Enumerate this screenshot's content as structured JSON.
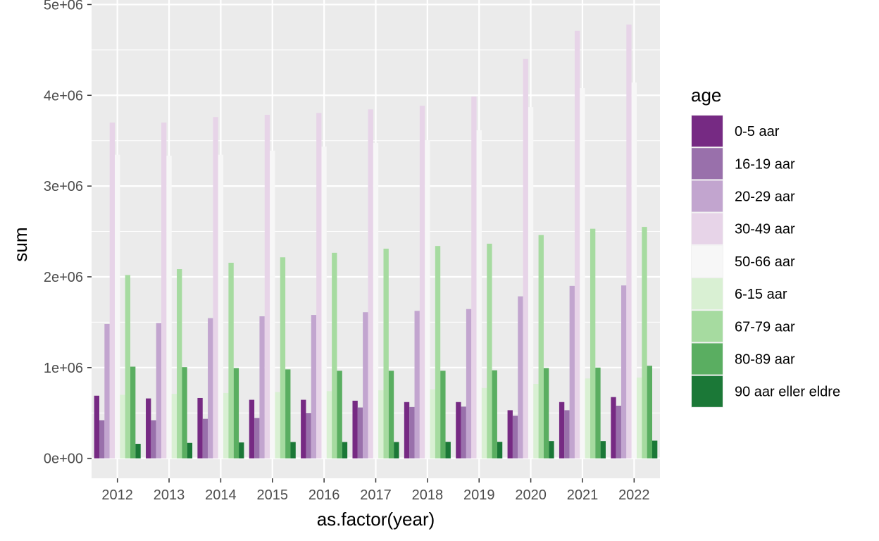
{
  "chart_data": {
    "type": "bar",
    "xlabel": "as.factor(year)",
    "ylabel": "sum",
    "ylim": [
      -220000,
      5050000
    ],
    "y_ticks": [
      0,
      1000000,
      2000000,
      3000000,
      4000000,
      5000000
    ],
    "y_tick_labels": [
      "0e+00",
      "1e+06",
      "2e+06",
      "3e+06",
      "4e+06",
      "5e+06"
    ],
    "grid": true,
    "legend": {
      "title": "age",
      "position": "right"
    },
    "categories": [
      "2012",
      "2013",
      "2014",
      "2015",
      "2016",
      "2017",
      "2018",
      "2019",
      "2020",
      "2021",
      "2022"
    ],
    "series": [
      {
        "name": "0-5 aar",
        "color": "#762a83",
        "values": [
          690000,
          660000,
          665000,
          645000,
          645000,
          635000,
          620000,
          620000,
          530000,
          620000,
          675000
        ]
      },
      {
        "name": "16-19 aar",
        "color": "#9970ab",
        "values": [
          420000,
          420000,
          435000,
          445000,
          500000,
          560000,
          565000,
          570000,
          470000,
          530000,
          580000
        ]
      },
      {
        "name": "20-29 aar",
        "color": "#c2a5cf",
        "values": [
          1480000,
          1490000,
          1545000,
          1565000,
          1580000,
          1610000,
          1625000,
          1645000,
          1785000,
          1900000,
          1905000
        ]
      },
      {
        "name": "30-49 aar",
        "color": "#e7d4e8",
        "values": [
          3700000,
          3700000,
          3760000,
          3785000,
          3805000,
          3845000,
          3885000,
          3985000,
          4400000,
          4710000,
          4780000
        ]
      },
      {
        "name": "50-66 aar",
        "color": "#f7f7f7",
        "values": [
          3345000,
          3335000,
          3345000,
          3390000,
          3435000,
          3475000,
          3505000,
          3615000,
          3870000,
          4080000,
          4140000
        ]
      },
      {
        "name": "6-15 aar",
        "color": "#d9f0d3",
        "values": [
          700000,
          710000,
          720000,
          730000,
          740000,
          750000,
          760000,
          775000,
          820000,
          880000,
          890000
        ]
      },
      {
        "name": "67-79 aar",
        "color": "#a6dba0",
        "values": [
          2020000,
          2085000,
          2155000,
          2215000,
          2265000,
          2310000,
          2340000,
          2365000,
          2460000,
          2530000,
          2550000
        ]
      },
      {
        "name": "80-89 aar",
        "color": "#5aae61",
        "values": [
          1010000,
          1005000,
          995000,
          980000,
          965000,
          965000,
          965000,
          970000,
          995000,
          1000000,
          1020000
        ]
      },
      {
        "name": "90 aar eller eldre",
        "color": "#1b7837",
        "values": [
          160000,
          170000,
          175000,
          180000,
          180000,
          180000,
          182000,
          182000,
          190000,
          190000,
          195000
        ]
      }
    ]
  }
}
